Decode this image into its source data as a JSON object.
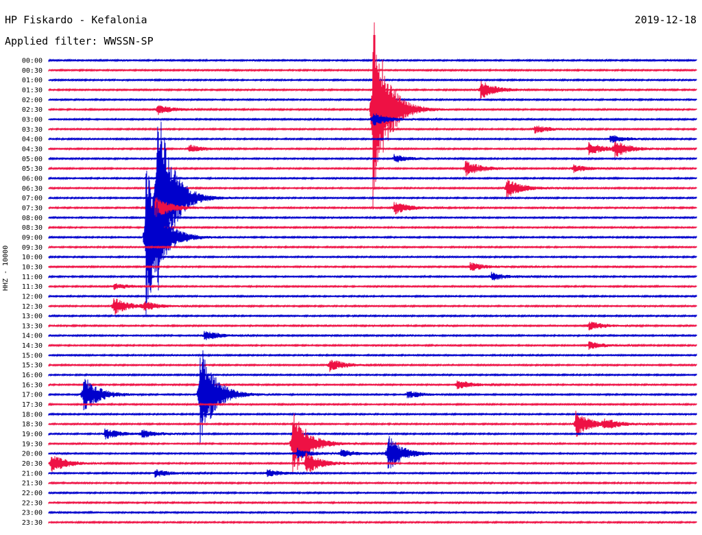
{
  "header": {
    "title": "HP Fiskardo - Kefalonia",
    "filter": "Applied filter: WWSSN-SP",
    "date": "2019-12-18"
  },
  "chart_data": {
    "type": "line",
    "title": "HP Fiskardo - Kefalonia",
    "subtitle": "Applied filter: WWSSN-SP",
    "date": "2019-12-18",
    "ylabel": "HHZ - 10000",
    "row_labels": [
      "00:00",
      "00:30",
      "01:00",
      "01:30",
      "02:00",
      "02:30",
      "03:00",
      "03:30",
      "04:00",
      "04:30",
      "05:00",
      "05:30",
      "06:00",
      "06:30",
      "07:00",
      "07:30",
      "08:00",
      "08:30",
      "09:00",
      "09:30",
      "10:00",
      "10:30",
      "11:00",
      "11:30",
      "12:00",
      "12:30",
      "13:00",
      "13:30",
      "14:00",
      "14:30",
      "15:00",
      "15:30",
      "16:00",
      "16:30",
      "17:00",
      "17:30",
      "18:00",
      "18:30",
      "19:00",
      "19:30",
      "20:00",
      "20:30",
      "21:00",
      "21:30",
      "22:00",
      "22:30",
      "23:00",
      "23:30"
    ],
    "trace_colors": [
      "#0000cc",
      "#ee1144"
    ],
    "row_minutes": 30,
    "grid": false,
    "events": [
      {
        "row": 3,
        "minute": 20.0,
        "amp": 14
      },
      {
        "row": 5,
        "minute": 15.0,
        "amp": 150
      },
      {
        "row": 5,
        "minute": 5.0,
        "amp": 8
      },
      {
        "row": 6,
        "minute": 15.0,
        "amp": 10
      },
      {
        "row": 7,
        "minute": 22.5,
        "amp": 6
      },
      {
        "row": 8,
        "minute": 26.0,
        "amp": 6
      },
      {
        "row": 9,
        "minute": 26.2,
        "amp": 12
      },
      {
        "row": 9,
        "minute": 25.0,
        "amp": 10
      },
      {
        "row": 9,
        "minute": 6.5,
        "amp": 6
      },
      {
        "row": 10,
        "minute": 16.0,
        "amp": 6
      },
      {
        "row": 11,
        "minute": 19.3,
        "amp": 12
      },
      {
        "row": 11,
        "minute": 24.3,
        "amp": 6
      },
      {
        "row": 13,
        "minute": 21.2,
        "amp": 15
      },
      {
        "row": 14,
        "minute": 5.0,
        "amp": 160
      },
      {
        "row": 15,
        "minute": 4.9,
        "amp": 20
      },
      {
        "row": 15,
        "minute": 16.0,
        "amp": 10
      },
      {
        "row": 18,
        "minute": 4.5,
        "amp": 120
      },
      {
        "row": 21,
        "minute": 19.5,
        "amp": 7
      },
      {
        "row": 22,
        "minute": 20.5,
        "amp": 6
      },
      {
        "row": 23,
        "minute": 3.0,
        "amp": 5
      },
      {
        "row": 25,
        "minute": 3.0,
        "amp": 14
      },
      {
        "row": 25,
        "minute": 4.4,
        "amp": 6
      },
      {
        "row": 27,
        "minute": 25.0,
        "amp": 7
      },
      {
        "row": 28,
        "minute": 7.2,
        "amp": 8
      },
      {
        "row": 29,
        "minute": 25.0,
        "amp": 6
      },
      {
        "row": 31,
        "minute": 13.0,
        "amp": 10
      },
      {
        "row": 33,
        "minute": 18.9,
        "amp": 7
      },
      {
        "row": 34,
        "minute": 1.6,
        "amp": 30
      },
      {
        "row": 34,
        "minute": 7.0,
        "amp": 80
      },
      {
        "row": 34,
        "minute": 16.6,
        "amp": 6
      },
      {
        "row": 37,
        "minute": 24.4,
        "amp": 20
      },
      {
        "row": 37,
        "minute": 25.7,
        "amp": 8
      },
      {
        "row": 38,
        "minute": 2.6,
        "amp": 8
      },
      {
        "row": 38,
        "minute": 4.3,
        "amp": 6
      },
      {
        "row": 39,
        "minute": 11.3,
        "amp": 55
      },
      {
        "row": 40,
        "minute": 11.5,
        "amp": 8
      },
      {
        "row": 40,
        "minute": 13.5,
        "amp": 6
      },
      {
        "row": 40,
        "minute": 15.7,
        "amp": 28
      },
      {
        "row": 41,
        "minute": 11.9,
        "amp": 18
      },
      {
        "row": 41,
        "minute": 0.1,
        "amp": 15
      },
      {
        "row": 42,
        "minute": 4.9,
        "amp": 6
      },
      {
        "row": 42,
        "minute": 10.1,
        "amp": 6
      }
    ]
  }
}
